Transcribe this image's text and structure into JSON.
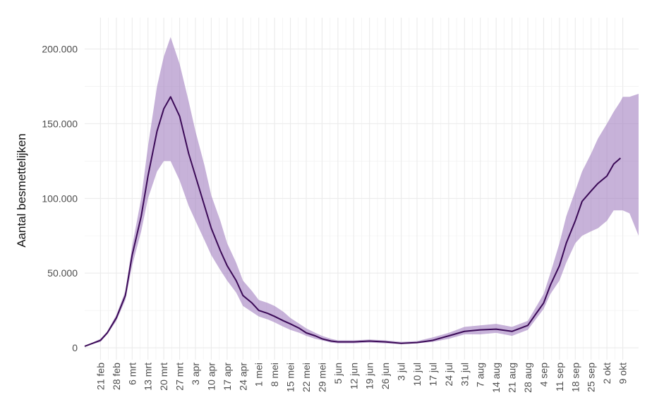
{
  "chart_data": {
    "type": "line",
    "ylabel": "Aantal besmettelijken",
    "line_color": "#3b0a57",
    "band_color": "#a27fbf",
    "x": [
      "14 feb",
      "21 feb",
      "24 feb",
      "28 feb",
      "3 mrt",
      "6 mrt",
      "10 mrt",
      "13 mrt",
      "17 mrt",
      "20 mrt",
      "23 mrt",
      "27 mrt",
      "31 mrt",
      "3 apr",
      "7 apr",
      "10 apr",
      "14 apr",
      "17 apr",
      "21 apr",
      "24 apr",
      "28 apr",
      "1 mei",
      "5 mei",
      "8 mei",
      "12 mei",
      "15 mei",
      "19 mei",
      "22 mei",
      "26 mei",
      "29 mei",
      "2 jun",
      "5 jun",
      "12 jun",
      "19 jun",
      "26 jun",
      "3 jul",
      "10 jul",
      "17 jul",
      "24 jul",
      "31 jul",
      "7 aug",
      "14 aug",
      "21 aug",
      "28 aug",
      "4 sep",
      "7 sep",
      "11 sep",
      "14 sep",
      "18 sep",
      "21 sep",
      "25 sep",
      "28 sep",
      "2 okt",
      "5 okt",
      "8 okt",
      "9 okt",
      "12 okt",
      "16 okt"
    ],
    "values": [
      1000,
      5000,
      10000,
      20000,
      35000,
      62000,
      88000,
      115000,
      145000,
      160000,
      168000,
      155000,
      130000,
      115000,
      95000,
      80000,
      65000,
      55000,
      45000,
      35000,
      30000,
      25000,
      23000,
      21000,
      18000,
      16000,
      13000,
      10000,
      8000,
      6000,
      4500,
      4000,
      4000,
      4500,
      4000,
      3000,
      3500,
      5000,
      8000,
      11000,
      12000,
      12500,
      11000,
      15000,
      30000,
      42000,
      55000,
      70000,
      85000,
      98000,
      105000,
      110000,
      115000,
      123000,
      127000,
      null,
      null,
      null
    ],
    "lower": [
      1000,
      4000,
      9000,
      18000,
      32000,
      55000,
      78000,
      100000,
      118000,
      125000,
      125000,
      112000,
      95000,
      85000,
      72000,
      62000,
      52000,
      45000,
      37000,
      28000,
      24000,
      21000,
      19000,
      17000,
      14000,
      12000,
      10000,
      8000,
      6000,
      5000,
      3500,
      3000,
      3000,
      3500,
      3000,
      2500,
      3000,
      4000,
      6000,
      9000,
      9000,
      10000,
      8000,
      12000,
      26000,
      36000,
      45000,
      57000,
      70000,
      75000,
      78000,
      80000,
      85000,
      92000,
      92000,
      92000,
      90000,
      75000
    ],
    "upper": [
      1000,
      6000,
      11000,
      22000,
      38000,
      68000,
      100000,
      135000,
      175000,
      195000,
      208000,
      190000,
      165000,
      145000,
      122000,
      102000,
      85000,
      70000,
      57000,
      45000,
      38000,
      32000,
      30000,
      28000,
      24000,
      20000,
      16000,
      13000,
      10000,
      8000,
      6000,
      5000,
      5000,
      5500,
      5000,
      4000,
      4500,
      7000,
      10000,
      14000,
      15000,
      16000,
      14000,
      18000,
      36000,
      50000,
      70000,
      88000,
      105000,
      118000,
      130000,
      140000,
      150000,
      158000,
      165000,
      168000,
      168000,
      170000
    ],
    "xlim": [
      "14 feb",
      "16 okt"
    ],
    "xticks": [
      "21 feb",
      "28 feb",
      "6 mrt",
      "13 mrt",
      "20 mrt",
      "27 mrt",
      "3 apr",
      "10 apr",
      "17 apr",
      "24 apr",
      "1 mei",
      "8 mei",
      "15 mei",
      "22 mei",
      "29 mei",
      "5 jun",
      "12 jun",
      "19 jun",
      "26 jun",
      "3 jul",
      "10 jul",
      "17 jul",
      "24 jul",
      "31 jul",
      "7 aug",
      "14 aug",
      "21 aug",
      "28 aug",
      "4 sep",
      "11 sep",
      "18 sep",
      "25 sep",
      "2 okt",
      "9 okt"
    ],
    "ylim": [
      -8000,
      221000
    ],
    "yticks": [
      0,
      {
        "value": 50000,
        "label": "50.000"
      },
      {
        "value": 100000,
        "label": "100.000"
      },
      {
        "value": 150000,
        "label": "150.000"
      },
      {
        "value": 200000,
        "label": "200.000"
      }
    ],
    "grid": true
  }
}
